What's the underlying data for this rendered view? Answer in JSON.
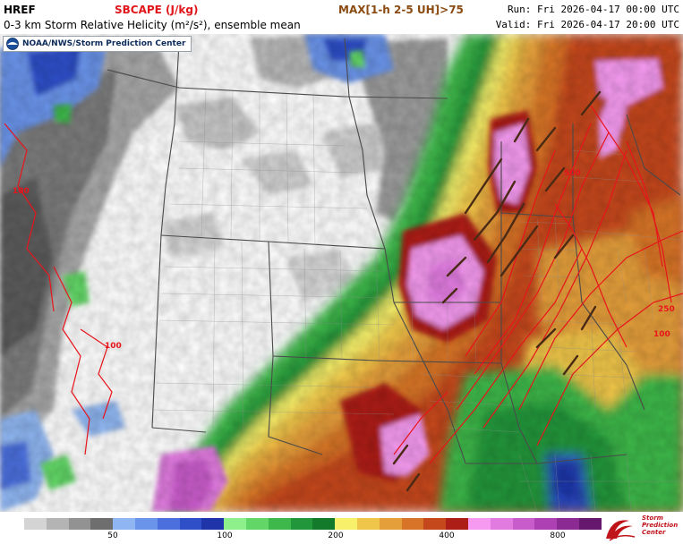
{
  "header": {
    "model": "HREF",
    "field": "SBCAPE (J/kg)",
    "overlay": "MAX[1-h 2-5 UH]>75",
    "contour_field": "0-3 km Storm Relative Helicity (m²/s²), ensemble mean",
    "run": "Run: Fri 2026-04-17 00:00 UTC",
    "valid": "Valid: Fri 2026-04-17 20:00 UTC"
  },
  "credit": {
    "text": "NOAA/NWS/Storm Prediction Center"
  },
  "map": {
    "contour_labels": [
      "100",
      "100",
      "500",
      "250",
      "100"
    ],
    "colors": {
      "land_none": "#ffffff",
      "state_lines": "#555555",
      "county_lines": "#9a9a9a",
      "contours": "#e8141b",
      "uh_swaths": "#4a2a14"
    }
  },
  "legend": {
    "colors": [
      "#d4d4d4",
      "#b4b4b4",
      "#929292",
      "#6e6e6e",
      "#8fb6f2",
      "#6a94ea",
      "#4c6fde",
      "#2f4fc9",
      "#1f34a8",
      "#8ef08a",
      "#62d666",
      "#3eb84a",
      "#22963a",
      "#137a2c",
      "#f6f06a",
      "#f0c64a",
      "#e59f3a",
      "#d87428",
      "#c5471c",
      "#ad1f16",
      "#f59af0",
      "#e17be0",
      "#c95ccb",
      "#ad40b2",
      "#8a2a92",
      "#66176e"
    ],
    "ticks": [
      "50",
      "100",
      "200",
      "400",
      "800"
    ]
  },
  "spc_logo": {
    "line1": "Storm",
    "line2": "Prediction",
    "line3": "Center"
  }
}
